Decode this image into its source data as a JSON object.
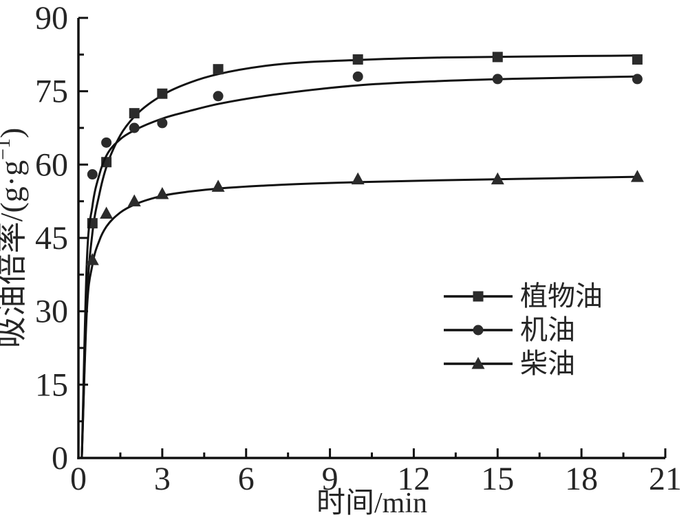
{
  "figure": {
    "background": "#ffffff",
    "axis_color": "#111111",
    "text_color": "#262626",
    "marker_color": "#2b2b2b"
  },
  "chart_data": {
    "type": "line",
    "title": "",
    "xlabel": "时间/min",
    "ylabel": "吸油倍率/(g·g⁻¹)",
    "ylabel_parts": {
      "main": "吸油倍率/(g·g",
      "sup": "−1",
      "close": ")"
    },
    "xlim": [
      0,
      21
    ],
    "ylim": [
      0,
      90
    ],
    "xticks": [
      0,
      3,
      6,
      9,
      12,
      15,
      18,
      21
    ],
    "yticks": [
      0,
      15,
      30,
      45,
      60,
      75,
      90
    ],
    "xticks_minor": [
      1.5,
      4.5,
      7.5,
      10.5,
      13.5,
      16.5,
      19.5
    ],
    "yticks_minor": [
      7.5,
      22.5,
      37.5,
      52.5,
      67.5,
      82.5
    ],
    "grid": false,
    "legend_position": "right-middle",
    "series": [
      {
        "name": "植物油",
        "marker": "square",
        "color": "#2b2b2b",
        "x": [
          0.5,
          1,
          2,
          3,
          5,
          10,
          15,
          20
        ],
        "y": [
          48,
          60.5,
          70.5,
          74.5,
          79.5,
          81.5,
          82,
          81.5
        ],
        "fit_curve": [
          [
            0.12,
            0
          ],
          [
            0.3,
            32
          ],
          [
            0.5,
            46
          ],
          [
            0.75,
            54
          ],
          [
            1,
            59.5
          ],
          [
            1.5,
            66
          ],
          [
            2,
            69.8
          ],
          [
            3,
            74.2
          ],
          [
            4,
            76.8
          ],
          [
            5,
            78.5
          ],
          [
            7,
            80.4
          ],
          [
            10,
            81.4
          ],
          [
            13,
            81.9
          ],
          [
            16,
            82.1
          ],
          [
            20,
            82.3
          ]
        ]
      },
      {
        "name": "机油",
        "marker": "circle",
        "color": "#2b2b2b",
        "x": [
          0.5,
          1,
          2,
          3,
          5,
          10,
          15,
          20
        ],
        "y": [
          58,
          64.5,
          67.5,
          68.5,
          74,
          78,
          77.5,
          77.5
        ],
        "fit_curve": [
          [
            0.12,
            0
          ],
          [
            0.3,
            40
          ],
          [
            0.5,
            51.5
          ],
          [
            0.75,
            58
          ],
          [
            1,
            61.8
          ],
          [
            1.5,
            65.2
          ],
          [
            2,
            67
          ],
          [
            3,
            69.4
          ],
          [
            4,
            71
          ],
          [
            5,
            72.4
          ],
          [
            7,
            74.3
          ],
          [
            10,
            76.2
          ],
          [
            13,
            77.1
          ],
          [
            16,
            77.6
          ],
          [
            20,
            78
          ]
        ]
      },
      {
        "name": "柴油",
        "marker": "triangle",
        "color": "#2b2b2b",
        "x": [
          0.5,
          1,
          2,
          3,
          5,
          10,
          15,
          20
        ],
        "y": [
          40.5,
          50,
          52.5,
          54,
          55.5,
          57,
          57,
          57.5
        ],
        "fit_curve": [
          [
            0.12,
            0
          ],
          [
            0.3,
            30
          ],
          [
            0.5,
            39.5
          ],
          [
            0.75,
            44.5
          ],
          [
            1,
            47.3
          ],
          [
            1.5,
            50.2
          ],
          [
            2,
            51.8
          ],
          [
            3,
            53.6
          ],
          [
            4,
            54.5
          ],
          [
            5,
            55.1
          ],
          [
            7,
            55.8
          ],
          [
            10,
            56.4
          ],
          [
            13,
            56.8
          ],
          [
            16,
            57.1
          ],
          [
            20,
            57.5
          ]
        ]
      }
    ]
  }
}
